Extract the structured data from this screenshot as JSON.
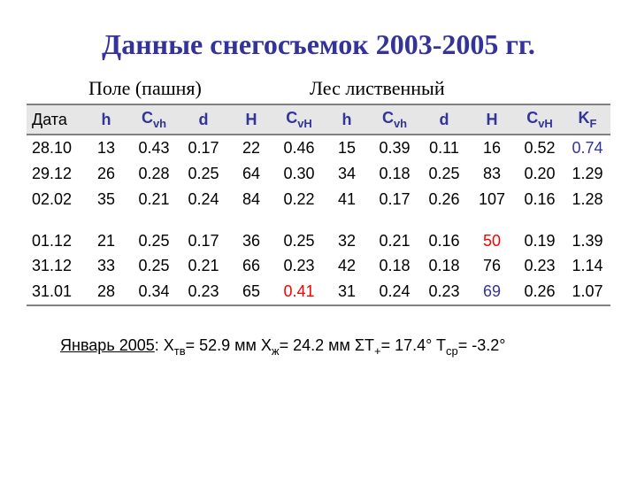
{
  "title": "Данные снегосъемок 2003-2005 гг.",
  "section_labels": {
    "field": "Поле  (пашня)",
    "forest": "Лес лиственный"
  },
  "table": {
    "header": {
      "date": "Дата",
      "h1": "h",
      "cvh1_pre": "C",
      "cvh1_sub": "vh",
      "d1": "d",
      "H1": "H",
      "cvH1_pre": "C",
      "cvH1_sub": "vH",
      "h2": "h",
      "cvh2_pre": "C",
      "cvh2_sub": "vh",
      "d2": "d",
      "H2": "H",
      "cvH2_pre": "C",
      "cvH2_sub": "vH",
      "kf_pre": "K",
      "kf_sub": "F"
    },
    "rows": [
      {
        "date": "28.10",
        "h1": "13",
        "cvh1": "0.43",
        "d1": "0.17",
        "H1": "22",
        "cvH1": "0.46",
        "h2": "15",
        "cvh2": "0.39",
        "d2": "0.11",
        "H2": "16",
        "cvH2": "0.52",
        "kf": "0.74",
        "styles": {
          "kf": "#333399"
        }
      },
      {
        "date": "29.12",
        "h1": "26",
        "cvh1": "0.28",
        "d1": "0.25",
        "H1": "64",
        "cvH1": "0.30",
        "h2": "34",
        "cvh2": "0.18",
        "d2": "0.25",
        "H2": "83",
        "cvH2": "0.20",
        "kf": "1.29"
      },
      {
        "date": "02.02",
        "h1": "35",
        "cvh1": "0.21",
        "d1": "0.24",
        "H1": "84",
        "cvH1": "0.22",
        "h2": "41",
        "cvh2": "0.17",
        "d2": "0.26",
        "H2": "107",
        "cvH2": "0.16",
        "kf": "1.28"
      },
      {
        "spacer": true
      },
      {
        "date": "01.12",
        "h1": "21",
        "cvh1": "0.25",
        "d1": "0.17",
        "H1": "36",
        "cvH1": "0.25",
        "h2": "32",
        "cvh2": "0.21",
        "d2": "0.16",
        "H2": "50",
        "cvH2": "0.19",
        "kf": "1.39",
        "styles": {
          "H2": "#ff0000"
        }
      },
      {
        "date": "31.12",
        "h1": "33",
        "cvh1": "0.25",
        "d1": "0.21",
        "H1": "66",
        "cvH1": "0.23",
        "h2": "42",
        "cvh2": "0.18",
        "d2": "0.18",
        "H2": "76",
        "cvH2": "0.23",
        "kf": "1.14"
      },
      {
        "date": "31.01",
        "h1": "28",
        "cvh1": "0.34",
        "d1": "0.23",
        "H1": "65",
        "cvH1": "0.41",
        "h2": "31",
        "cvh2": "0.24",
        "d2": "0.23",
        "H2": "69",
        "cvH2": "0.26",
        "kf": "1.07",
        "styles": {
          "cvH1": "#ff0000",
          "H2": "#333399"
        }
      }
    ]
  },
  "footnote": {
    "underlined": "Январь 2005",
    "parts": {
      "p0": ": X",
      "s0": "тв",
      "p1": "= 52.9 мм  X",
      "s1": "ж",
      "p2": "= 24.2 мм  ΣT",
      "s2": "+",
      "p3": "= 17.4°  T",
      "s3": "ср",
      "p4": "= -3.2°"
    }
  },
  "colors": {
    "title": "#333399",
    "header_text": "#333399",
    "header_bg": "#e6e6e6",
    "border": "#808080",
    "highlight_red": "#ff0000",
    "highlight_blue": "#333399",
    "text": "#000000",
    "background": "#ffffff"
  },
  "fontsizes": {
    "title": 32,
    "section": 22,
    "cells": 18,
    "footnote": 18
  }
}
